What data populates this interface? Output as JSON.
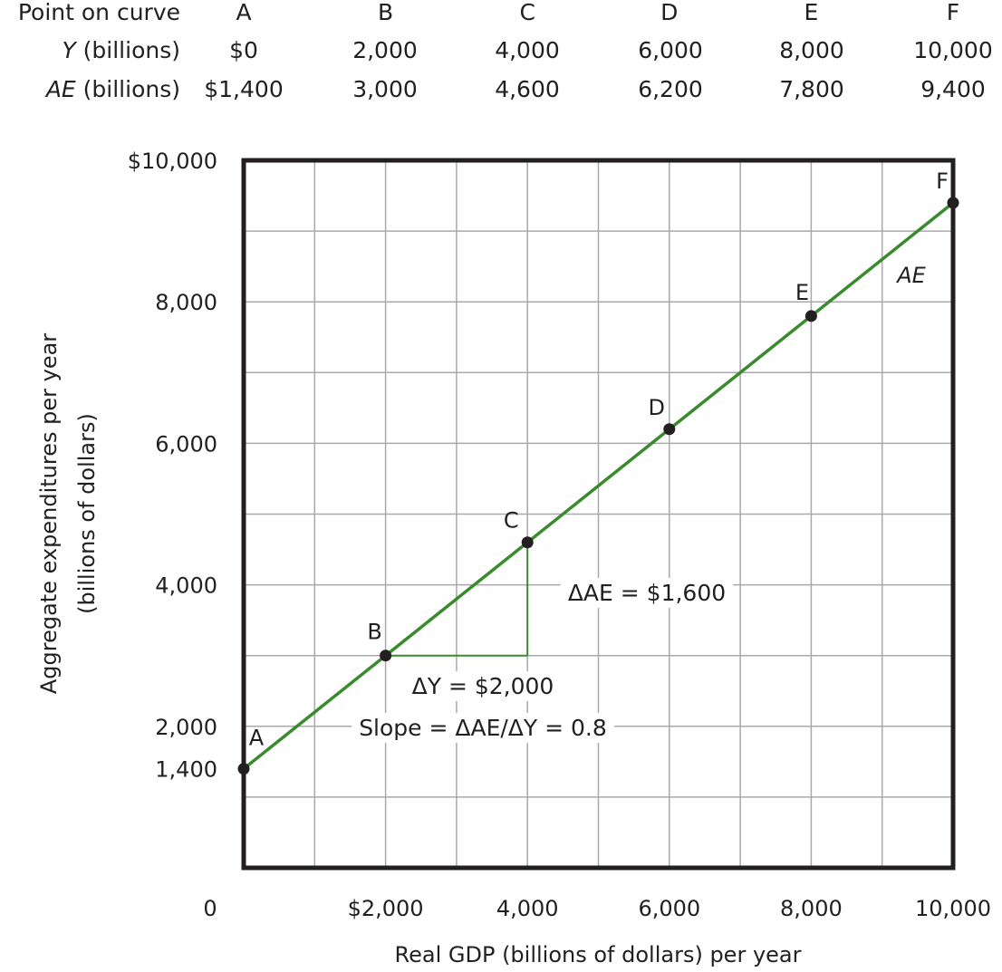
{
  "table": {
    "header_label": "Point on curve",
    "rows": [
      {
        "var": "Y",
        "unit": " (billions)",
        "values": [
          "$0",
          "2,000",
          "4,000",
          "6,000",
          "8,000",
          "10,000"
        ]
      },
      {
        "var": "AE",
        "unit": " (billions)",
        "values": [
          "$1,400",
          "3,000",
          "4,600",
          "6,200",
          "7,800",
          "9,400"
        ]
      }
    ]
  },
  "chart_data": {
    "type": "line",
    "title": "",
    "xlabel": "Real GDP (billions of dollars) per year",
    "ylabel_line1": "Aggregate expenditures per year",
    "ylabel_line2": "(billions of dollars)",
    "xlim": [
      0,
      10000
    ],
    "ylim": [
      0,
      10000
    ],
    "grid": true,
    "x_origin_label": "0",
    "x_ticks": [
      {
        "value": 2000,
        "label": "$2,000"
      },
      {
        "value": 4000,
        "label": "4,000"
      },
      {
        "value": 6000,
        "label": "6,000"
      },
      {
        "value": 8000,
        "label": "8,000"
      },
      {
        "value": 10000,
        "label": "10,000"
      }
    ],
    "y_ticks": [
      {
        "value": 1400,
        "label": "1,400"
      },
      {
        "value": 2000,
        "label": "2,000"
      },
      {
        "value": 4000,
        "label": "4,000"
      },
      {
        "value": 6000,
        "label": "6,000"
      },
      {
        "value": 8000,
        "label": "8,000"
      },
      {
        "value": 10000,
        "label": "$10,000"
      }
    ],
    "series": [
      {
        "name": "AE",
        "color": "#3a8a2e",
        "points": [
          {
            "label": "A",
            "x": 0,
            "y": 1400
          },
          {
            "label": "B",
            "x": 2000,
            "y": 3000
          },
          {
            "label": "C",
            "x": 4000,
            "y": 4600
          },
          {
            "label": "D",
            "x": 6000,
            "y": 6200
          },
          {
            "label": "E",
            "x": 8000,
            "y": 7800
          },
          {
            "label": "F",
            "x": 10000,
            "y": 9400
          }
        ]
      }
    ],
    "slope_triangle": {
      "from": {
        "x": 2000,
        "y": 3000
      },
      "to": {
        "x": 4000,
        "y": 4600
      }
    },
    "annotations": {
      "delta_ae": "ΔAE = $1,600",
      "delta_y": "ΔY = $2,000",
      "slope": "Slope = ΔAE/ΔY = 0.8"
    }
  }
}
